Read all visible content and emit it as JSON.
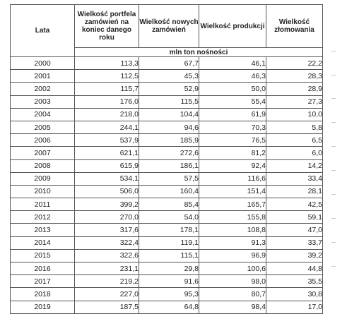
{
  "table": {
    "headers": {
      "year": "Lata",
      "backlog": "Wielkość portfela zamówień na koniec danego roku",
      "new_orders": "Wielkość nowych zamówień",
      "production": "Wielkość produkcji",
      "scrapping": "Wielkość złomowania"
    },
    "unit": "mln ton nośności",
    "rows": [
      {
        "year": "2000",
        "backlog": "113,3",
        "new_orders": "67,7",
        "production": "46,1",
        "scrapping": "22,2"
      },
      {
        "year": "2001",
        "backlog": "112,5",
        "new_orders": "45,3",
        "production": "46,3",
        "scrapping": "28,3"
      },
      {
        "year": "2002",
        "backlog": "115,7",
        "new_orders": "52,9",
        "production": "50,0",
        "scrapping": "28,9"
      },
      {
        "year": "2003",
        "backlog": "176,0",
        "new_orders": "115,5",
        "production": "55,4",
        "scrapping": "27,3"
      },
      {
        "year": "2004",
        "backlog": "218,0",
        "new_orders": "104,4",
        "production": "61,9",
        "scrapping": "10,0"
      },
      {
        "year": "2005",
        "backlog": "244,1",
        "new_orders": "94,6",
        "production": "70,3",
        "scrapping": "5,8"
      },
      {
        "year": "2006",
        "backlog": "537,9",
        "new_orders": "185,9",
        "production": "76,5",
        "scrapping": "6,5"
      },
      {
        "year": "2007",
        "backlog": "621,1",
        "new_orders": "272,6",
        "production": "81,2",
        "scrapping": "6,0"
      },
      {
        "year": "2008",
        "backlog": "615,9",
        "new_orders": "186,1",
        "production": "92,4",
        "scrapping": "14,2"
      },
      {
        "year": "2009",
        "backlog": "534,1",
        "new_orders": "57,5",
        "production": "116,6",
        "scrapping": "33,4"
      },
      {
        "year": "2010",
        "backlog": "506,0",
        "new_orders": "160,4",
        "production": "151,4",
        "scrapping": "28,1"
      },
      {
        "year": "2011",
        "backlog": "399,2",
        "new_orders": "85,4",
        "production": "165,7",
        "scrapping": "42,5"
      },
      {
        "year": "2012",
        "backlog": "270,0",
        "new_orders": "54,0",
        "production": "155,8",
        "scrapping": "59,1"
      },
      {
        "year": "2013",
        "backlog": "317,6",
        "new_orders": "178,1",
        "production": "108,8",
        "scrapping": "47,0"
      },
      {
        "year": "2014",
        "backlog": "322,4",
        "new_orders": "119,1",
        "production": "91,3",
        "scrapping": "33,7"
      },
      {
        "year": "2015",
        "backlog": "322,6",
        "new_orders": "115,1",
        "production": "96,9",
        "scrapping": "39,2"
      },
      {
        "year": "2016",
        "backlog": "231,1",
        "new_orders": "29,8",
        "production": "100,6",
        "scrapping": "44,8"
      },
      {
        "year": "2017",
        "backlog": "219,2",
        "new_orders": "91,6",
        "production": "98,0",
        "scrapping": "35,5"
      },
      {
        "year": "2018",
        "backlog": "227,0",
        "new_orders": "95,3",
        "production": "80,7",
        "scrapping": "30,8"
      },
      {
        "year": "2019",
        "backlog": "187,5",
        "new_orders": "64,8",
        "production": "98,4",
        "scrapping": "17,0"
      }
    ]
  }
}
